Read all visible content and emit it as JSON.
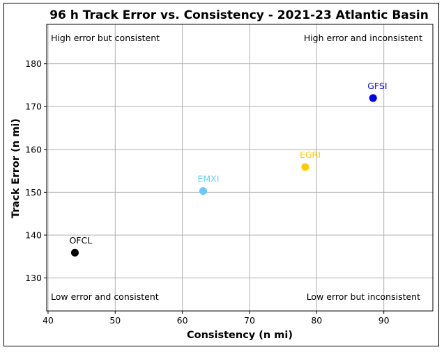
{
  "chart_data": {
    "type": "scatter",
    "title": "96 h Track Error vs. Consistency - 2021-23 Atlantic Basin",
    "xlabel": "Consistency (n mi)",
    "ylabel": "Track Error (n mi)",
    "xlim": [
      39.8,
      97.3
    ],
    "ylim": [
      122.3,
      189.2
    ],
    "xticks": [
      40,
      50,
      60,
      70,
      80,
      90
    ],
    "yticks": [
      130,
      140,
      150,
      160,
      170,
      180
    ],
    "grid": true,
    "points": [
      {
        "label": "OFCL",
        "x": 44.0,
        "y": 135.9,
        "color": "#000000"
      },
      {
        "label": "EMXI",
        "x": 63.1,
        "y": 150.3,
        "color": "#66ccff"
      },
      {
        "label": "EGRI",
        "x": 78.3,
        "y": 155.9,
        "color": "#ffcc00"
      },
      {
        "label": "GFSI",
        "x": 88.4,
        "y": 172.0,
        "color": "#0000ee"
      }
    ],
    "annotations": {
      "top_left": "High error but consistent",
      "top_right": "High error and inconsistent",
      "bottom_left": "Low error and consistent",
      "bottom_right": "Low error but inconsistent"
    }
  }
}
